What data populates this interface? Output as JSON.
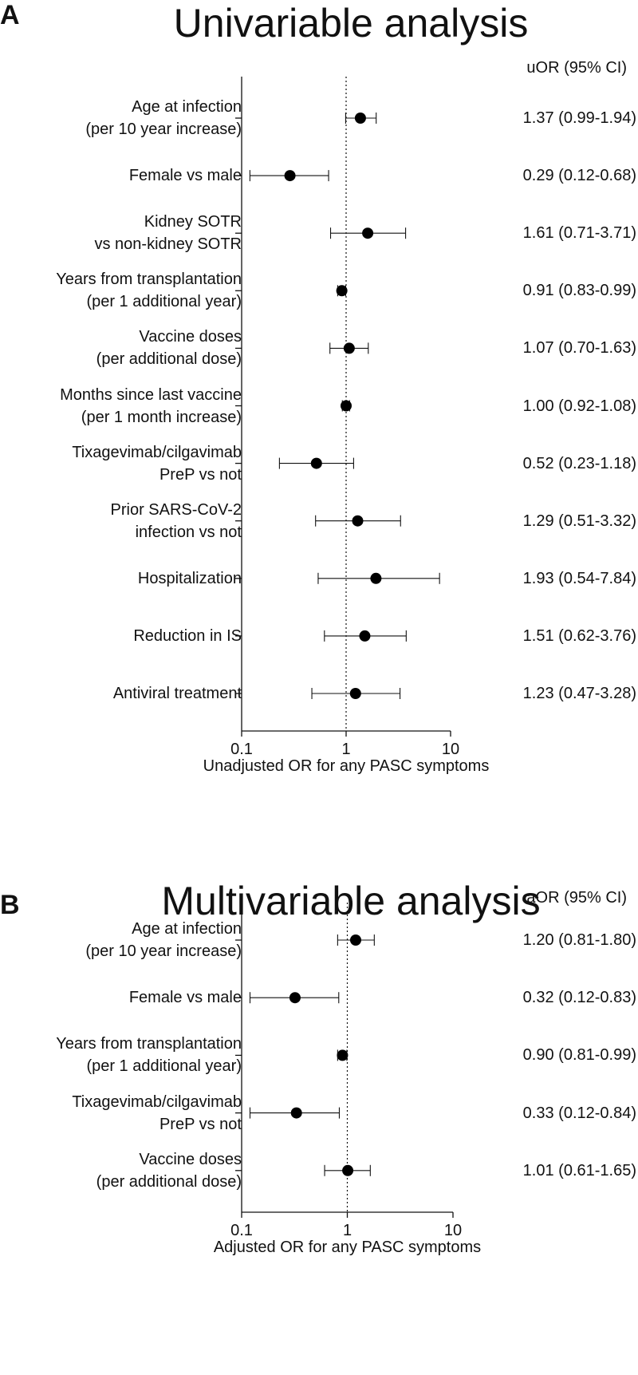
{
  "panels": [
    {
      "letter": "A",
      "title": "Univariable analysis",
      "column_header": "uOR (95% CI)",
      "xlabel": "Unadjusted OR for any PASC symptoms",
      "rows": [
        {
          "label": "Age at infection\n(per 10 year increase)",
          "value_text": "1.37 (0.99-1.94)"
        },
        {
          "label": "Female vs male",
          "value_text": "0.29 (0.12-0.68)"
        },
        {
          "label": "Kidney SOTR\nvs non-kidney SOTR",
          "value_text": "1.61 (0.71-3.71)"
        },
        {
          "label": "Years from transplantation\n(per 1 additional year)",
          "value_text": "0.91 (0.83-0.99)"
        },
        {
          "label": "Vaccine doses\n(per additional dose)",
          "value_text": "1.07 (0.70-1.63)"
        },
        {
          "label": "Months since last vaccine\n(per 1 month increase)",
          "value_text": "1.00 (0.92-1.08)"
        },
        {
          "label": "Tixagevimab/cilgavimab\nPreP vs not",
          "value_text": "0.52 (0.23-1.18)"
        },
        {
          "label": "Prior SARS-CoV-2\ninfection vs not",
          "value_text": "1.29 (0.51-3.32)"
        },
        {
          "label": "Hospitalization",
          "value_text": "1.93 (0.54-7.84)"
        },
        {
          "label": "Reduction in IS",
          "value_text": "1.51 (0.62-3.76)"
        },
        {
          "label": "Antiviral treatment",
          "value_text": "1.23 (0.47-3.28)"
        }
      ]
    },
    {
      "letter": "B",
      "title": "Multivariable analysis",
      "column_header": "aOR (95% CI)",
      "xlabel": "Adjusted OR for any PASC symptoms",
      "rows": [
        {
          "label": "Age at infection\n(per 10 year increase)",
          "value_text": "1.20 (0.81-1.80)"
        },
        {
          "label": "Female vs male",
          "value_text": "0.32 (0.12-0.83)"
        },
        {
          "label": "Years from transplantation\n(per 1 additional year)",
          "value_text": "0.90 (0.81-0.99)"
        },
        {
          "label": "Tixagevimab/cilgavimab\nPreP vs not",
          "value_text": "0.33 (0.12-0.84)"
        },
        {
          "label": "Vaccine doses\n(per additional dose)",
          "value_text": "1.01 (0.61-1.65)"
        }
      ]
    }
  ],
  "chart_data": [
    {
      "type": "scatter",
      "subtype": "forest-plot",
      "title": "Univariable analysis",
      "xlabel": "Unadjusted OR for any PASC symptoms",
      "xscale": "log",
      "xlim": [
        0.1,
        10
      ],
      "xticks": [
        0.1,
        1,
        10
      ],
      "xtick_labels": [
        "0.1",
        "1",
        "10"
      ],
      "reference_line": 1,
      "grid": false,
      "categories": [
        "Age at infection (per 10 year increase)",
        "Female vs male",
        "Kidney SOTR vs non-kidney SOTR",
        "Years from transplantation (per 1 additional year)",
        "Vaccine doses (per additional dose)",
        "Months since last vaccine (per 1 month increase)",
        "Tixagevimab/cilgavimab PreP vs not",
        "Prior SARS-CoV-2 infection vs not",
        "Hospitalization",
        "Reduction in IS",
        "Antiviral treatment"
      ],
      "estimates": [
        1.37,
        0.29,
        1.61,
        0.91,
        1.07,
        1.0,
        0.52,
        1.29,
        1.93,
        1.51,
        1.23
      ],
      "ci_lower": [
        0.99,
        0.12,
        0.71,
        0.83,
        0.7,
        0.92,
        0.23,
        0.51,
        0.54,
        0.62,
        0.47
      ],
      "ci_upper": [
        1.94,
        0.68,
        3.71,
        0.99,
        1.63,
        1.08,
        1.18,
        3.32,
        7.84,
        3.76,
        3.28
      ]
    },
    {
      "type": "scatter",
      "subtype": "forest-plot",
      "title": "Multivariable analysis",
      "xlabel": "Adjusted OR for any PASC symptoms",
      "xscale": "log",
      "xlim": [
        0.1,
        10
      ],
      "xticks": [
        0.1,
        1,
        10
      ],
      "xtick_labels": [
        "0.1",
        "1",
        "10"
      ],
      "reference_line": 1,
      "grid": false,
      "categories": [
        "Age at infection (per 10 year increase)",
        "Female vs male",
        "Years from transplantation (per 1 additional year)",
        "Tixagevimab/cilgavimab PreP vs not",
        "Vaccine doses (per additional dose)"
      ],
      "estimates": [
        1.2,
        0.32,
        0.9,
        0.33,
        1.01
      ],
      "ci_lower": [
        0.81,
        0.12,
        0.81,
        0.12,
        0.61
      ],
      "ci_upper": [
        1.8,
        0.83,
        0.99,
        0.84,
        1.65
      ]
    }
  ]
}
